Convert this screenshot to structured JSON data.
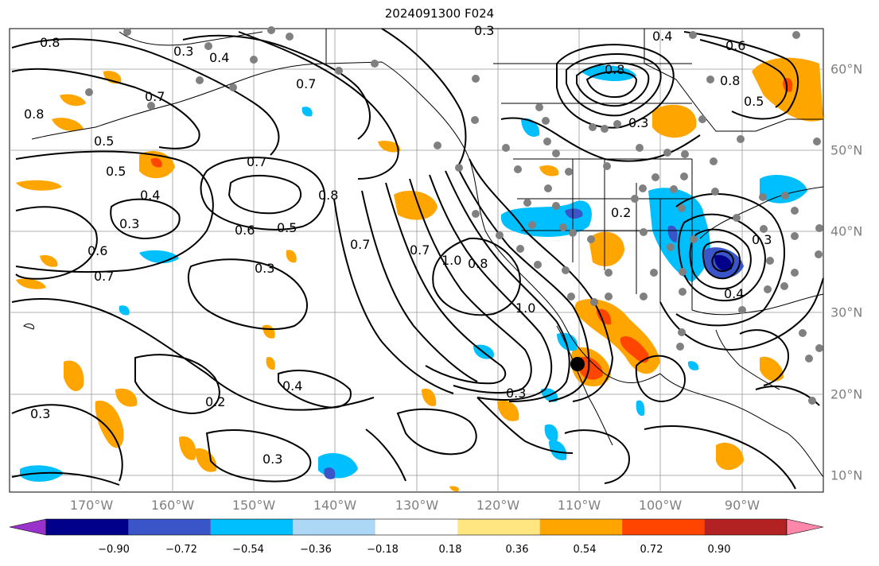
{
  "title": "2024091300 F024",
  "map": {
    "lon_ticks": [
      "170°W",
      "160°W",
      "150°W",
      "140°W",
      "130°W",
      "120°W",
      "110°W",
      "100°W",
      "90°W"
    ],
    "lat_ticks": [
      "60°N",
      "50°N",
      "40°N",
      "30°N",
      "20°N",
      "10°N"
    ],
    "lon_range": [
      -180,
      -80
    ],
    "lat_range": [
      8,
      65
    ],
    "tick_label_color": "#808080",
    "gridlines": true,
    "contour_labels": [
      "0.8",
      "0.3",
      "0.4",
      "0.7",
      "0.8",
      "0.5",
      "0.5",
      "0.7",
      "0.4",
      "0.3",
      "0.6",
      "0.7",
      "0.7",
      "0.8",
      "0.6",
      "0.5",
      "0.3",
      "0.7",
      "0.7",
      "1.0",
      "0.8",
      "1.0",
      "0.4",
      "0.8",
      "0.6",
      "0.8",
      "0.5",
      "0.3",
      "0.2",
      "0.3",
      "0.4",
      "0.4",
      "0.2",
      "0.3",
      "0.3",
      "0.3",
      "0.3"
    ],
    "station_marker_color": "#808080",
    "storm_marker": "black-dot"
  },
  "colorbar": {
    "ticks": [
      "−0.90",
      "−0.72",
      "−0.54",
      "−0.36",
      "−0.18",
      "0.18",
      "0.36",
      "0.54",
      "0.72",
      "0.90"
    ],
    "colors": [
      "#9932cc",
      "#00008b",
      "#3a55c7",
      "#00bfff",
      "#add8f5",
      "#ffffff",
      "#ffe680",
      "#ffa500",
      "#ff4500",
      "#b22222",
      "#ff88aa"
    ]
  }
}
